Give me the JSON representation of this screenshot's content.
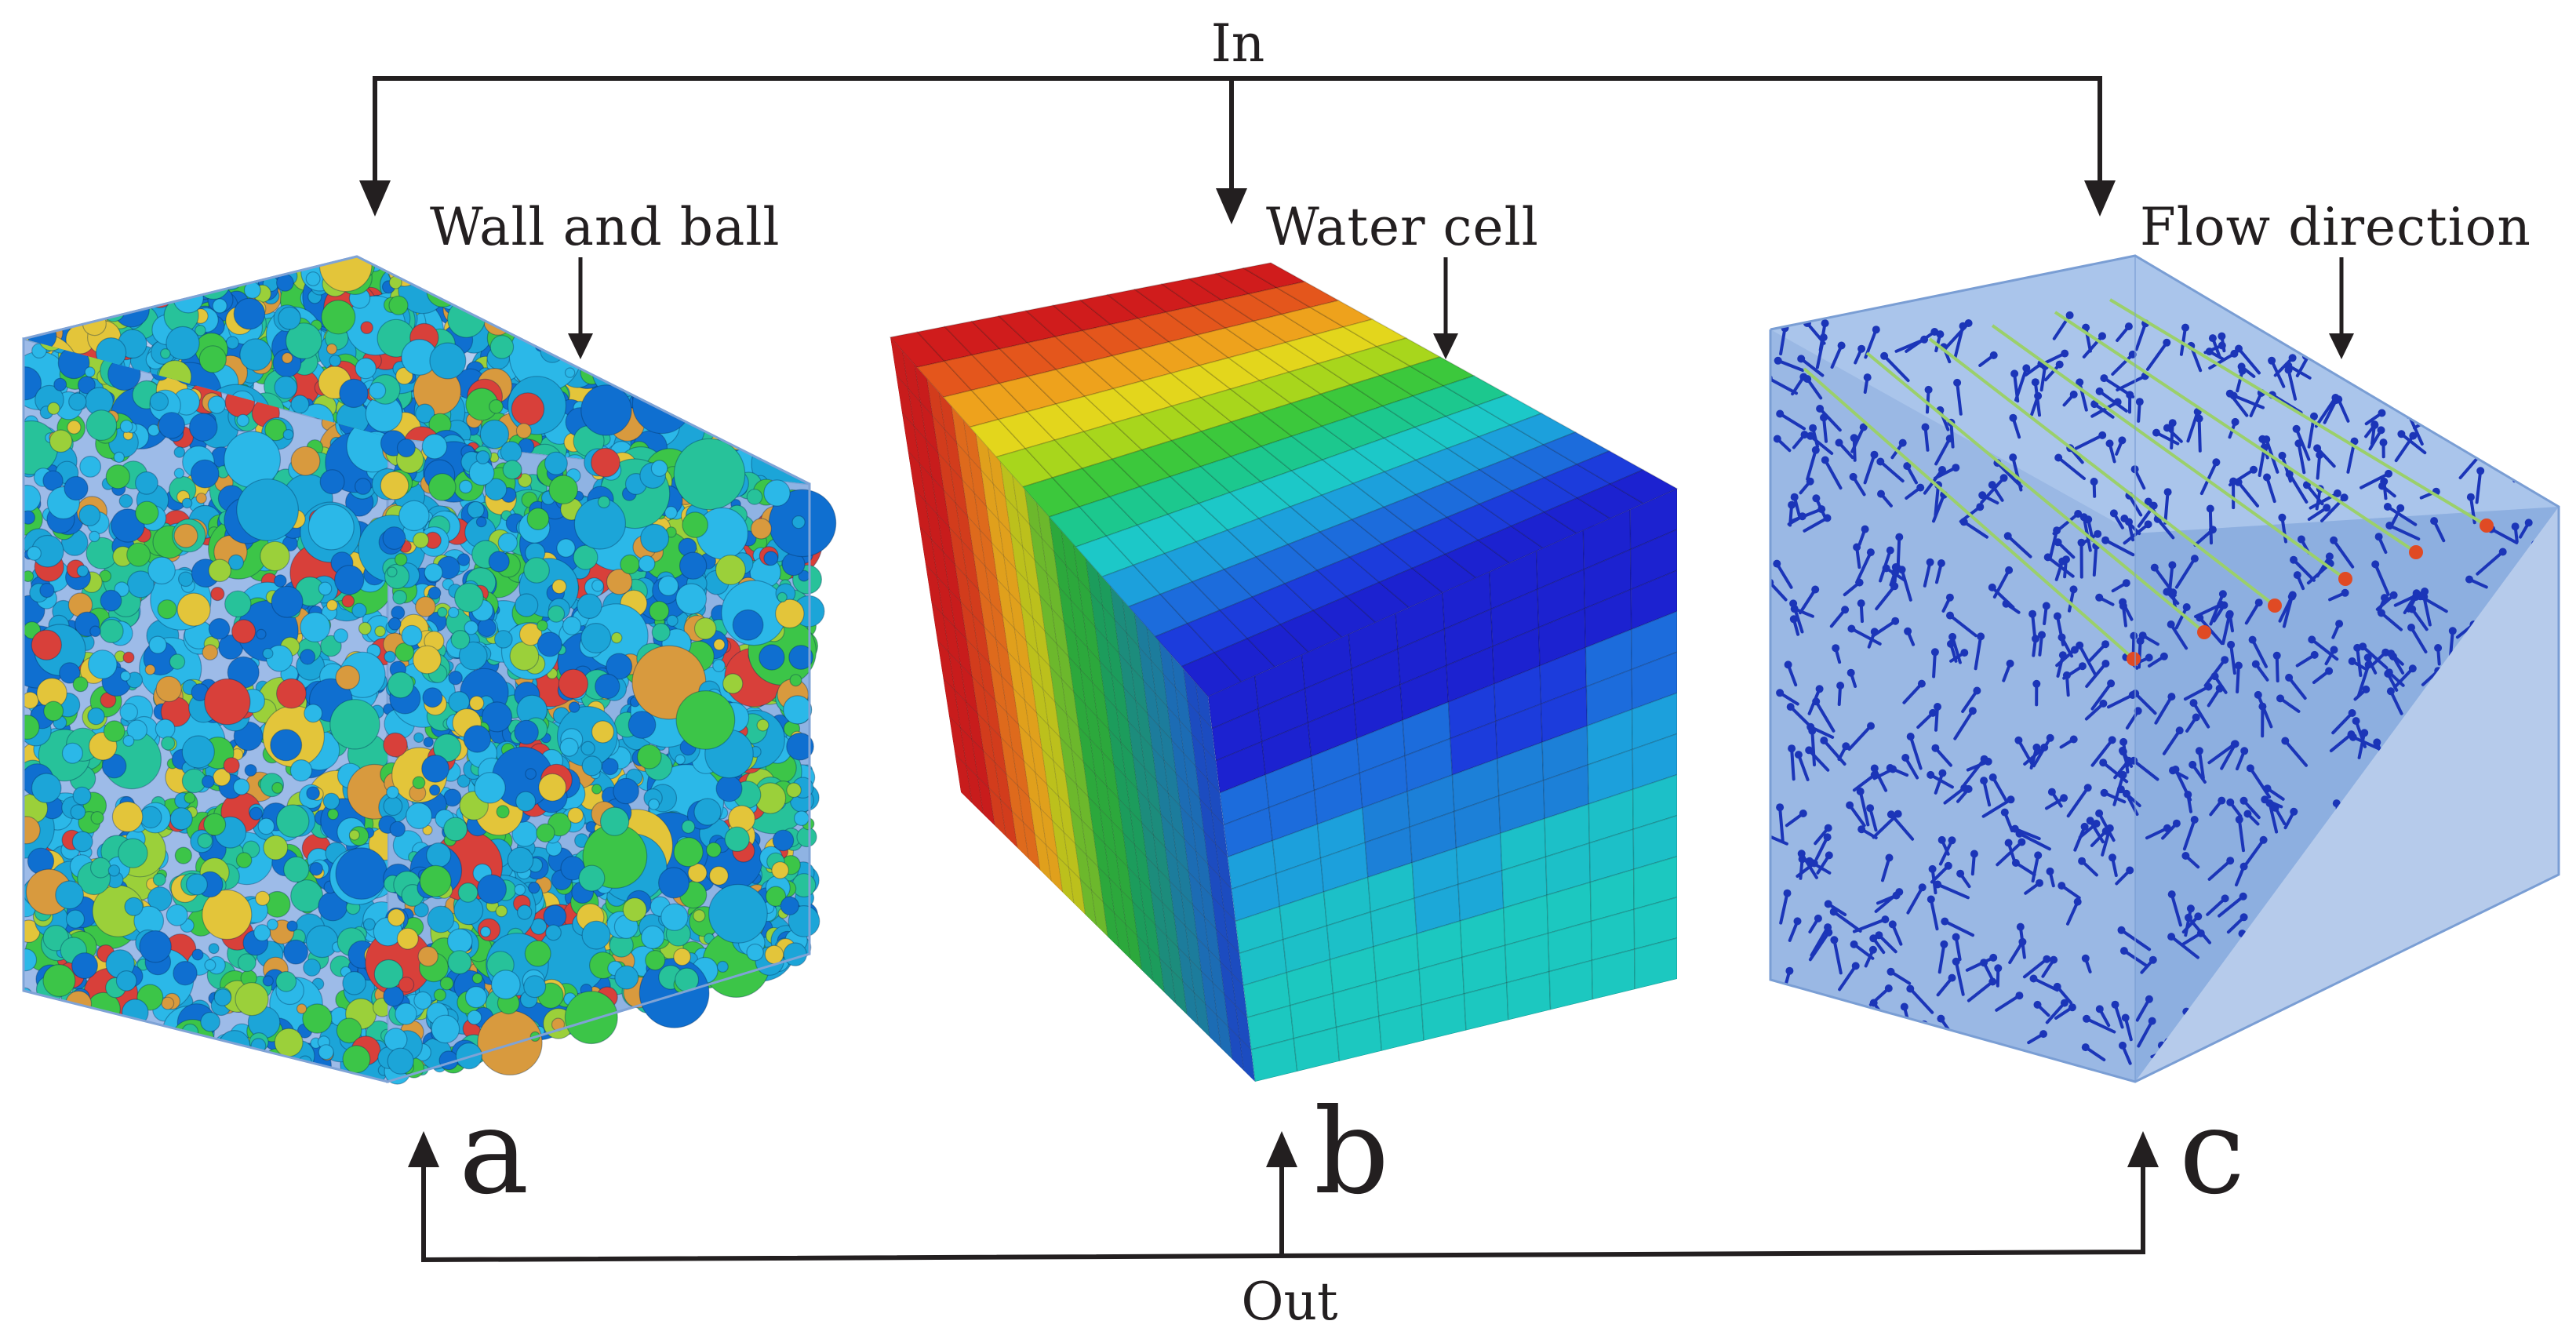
{
  "flow": {
    "in_label": "In",
    "out_label": "Out"
  },
  "panels": [
    {
      "id": "a",
      "letter": "a",
      "caption": "Wall and ball"
    },
    {
      "id": "b",
      "letter": "b",
      "caption": "Water cell"
    },
    {
      "id": "c",
      "letter": "c",
      "caption": "Flow direction"
    }
  ],
  "colors": {
    "line": "#231f20",
    "wall": "#8fb3e3",
    "balls": [
      "#1ca5d8",
      "#2bb8e8",
      "#0f6fd0",
      "#27c29a",
      "#3cc548",
      "#9bd03a",
      "#e3c53a",
      "#d89a3e",
      "#d8403a"
    ],
    "cells": [
      "#d01c1c",
      "#e4561c",
      "#eea21c",
      "#e3d61c",
      "#a8d61c",
      "#3cc83c",
      "#1cc88e",
      "#1cc8c8",
      "#1ca0dc",
      "#1c6cdc",
      "#1c3cdc",
      "#1c22d0"
    ],
    "vectors": "#1b35b8",
    "streamline_head": "#e04a24"
  }
}
